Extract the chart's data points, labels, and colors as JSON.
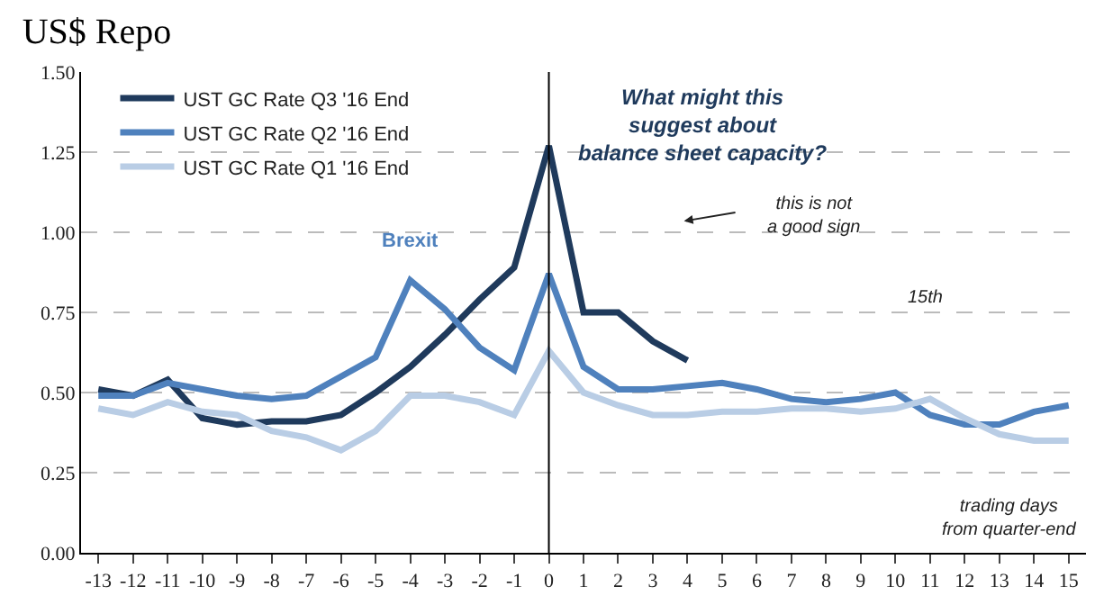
{
  "chart_data": {
    "type": "line",
    "title": "US$ Repo",
    "x": [
      -13,
      -12,
      -11,
      -10,
      -9,
      -8,
      -7,
      -6,
      -5,
      -4,
      -3,
      -2,
      -1,
      0,
      1,
      2,
      3,
      4,
      5,
      6,
      7,
      8,
      9,
      10,
      11,
      12,
      13,
      14,
      15
    ],
    "series": [
      {
        "name": "UST GC Rate Q3 '16 End",
        "color": "#1f3a5c",
        "values": [
          0.51,
          0.49,
          0.54,
          0.42,
          0.4,
          0.41,
          0.41,
          0.43,
          0.5,
          0.58,
          0.68,
          0.79,
          0.89,
          1.27,
          0.75,
          0.75,
          0.66,
          0.6,
          null,
          null,
          null,
          null,
          null,
          null,
          null,
          null,
          null,
          null,
          null
        ]
      },
      {
        "name": "UST GC Rate Q2 '16 End",
        "color": "#4f81bd",
        "values": [
          0.49,
          0.49,
          0.53,
          0.51,
          0.49,
          0.48,
          0.49,
          0.55,
          0.61,
          0.85,
          0.76,
          0.64,
          0.57,
          0.87,
          0.58,
          0.51,
          0.51,
          0.52,
          0.53,
          0.51,
          0.48,
          0.47,
          0.48,
          0.5,
          0.43,
          0.4,
          0.4,
          0.44,
          0.46
        ]
      },
      {
        "name": "UST GC Rate Q1 '16 End",
        "color": "#b9cde5",
        "values": [
          0.45,
          0.43,
          0.47,
          0.44,
          0.43,
          0.38,
          0.36,
          0.32,
          0.38,
          0.49,
          0.49,
          0.47,
          0.43,
          0.63,
          0.5,
          0.46,
          0.43,
          0.43,
          0.44,
          0.44,
          0.45,
          0.45,
          0.44,
          0.45,
          0.48,
          0.42,
          0.37,
          0.35,
          0.35
        ]
      }
    ],
    "xlim": [
      -13.5,
      15.5
    ],
    "xticks": [
      -13,
      -12,
      -11,
      -10,
      -9,
      -8,
      -7,
      -6,
      -5,
      -4,
      -3,
      -2,
      -1,
      0,
      1,
      2,
      3,
      4,
      5,
      6,
      7,
      8,
      9,
      10,
      11,
      12,
      13,
      14,
      15
    ],
    "ylim": [
      0,
      1.5
    ],
    "yticks": [
      {
        "value": 0,
        "label": "0.00"
      },
      {
        "value": 0.25,
        "label": "0.25"
      },
      {
        "value": 0.5,
        "label": "0.50"
      },
      {
        "value": 0.75,
        "label": "0.75"
      },
      {
        "value": 1,
        "label": "1.00"
      },
      {
        "value": 1.25,
        "label": "1.25"
      },
      {
        "value": 1.5,
        "label": "1.50"
      }
    ],
    "grid": "y",
    "legend": "top left",
    "marker": "none",
    "line_style": "solid",
    "ref_lines": [
      {
        "axis": "x",
        "value": 0,
        "label": null,
        "color": "#000000"
      }
    ],
    "annotations": [
      "Brexit",
      "What might this suggest about balance sheet capacity?",
      "this is not a good sign",
      "15th",
      "trading days from quarter-end"
    ]
  }
}
